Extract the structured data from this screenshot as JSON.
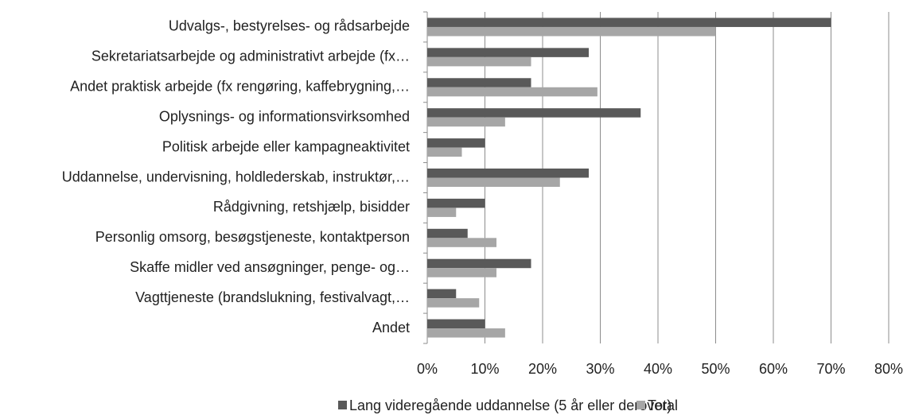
{
  "chart_data": {
    "type": "hbar",
    "categories": [
      "Udvalgs-, bestyrelses- og rådsarbejde",
      "Sekretariatsarbejde og administrativt arbejde (fx…",
      "Andet praktisk arbejde (fx rengøring, kaffebrygning,…",
      "Oplysnings- og informationsvirksomhed",
      "Politisk arbejde eller kampagneaktivitet",
      "Uddannelse, undervisning, holdlederskab, instruktør,…",
      "Rådgivning, retshjælp, bisidder",
      "Personlig omsorg, besøgstjeneste, kontaktperson",
      "Skaffe midler ved ansøgninger, penge- og…",
      "Vagttjeneste (brandslukning, festivalvagt,…",
      "Andet"
    ],
    "series": [
      {
        "name": "Lang videregående uddannelse (5 år eller derover)",
        "color": "#595959",
        "values": [
          70,
          28,
          18,
          37,
          10,
          28,
          10,
          7,
          18,
          5,
          10
        ]
      },
      {
        "name": "Total",
        "color": "#a6a6a6",
        "values": [
          50,
          18,
          29.5,
          13.5,
          6,
          23,
          5,
          12,
          12,
          9,
          13.5
        ]
      }
    ],
    "xlim": [
      0,
      80
    ],
    "xticks": [
      {
        "value": 0,
        "label": "0%"
      },
      {
        "value": 10,
        "label": "10%"
      },
      {
        "value": 20,
        "label": "20%"
      },
      {
        "value": 30,
        "label": "30%"
      },
      {
        "value": 40,
        "label": "40%"
      },
      {
        "value": 50,
        "label": "50%"
      },
      {
        "value": 60,
        "label": "60%"
      },
      {
        "value": 70,
        "label": "70%"
      },
      {
        "value": 80,
        "label": "80%"
      }
    ],
    "grid": true,
    "legend": "bottom"
  }
}
